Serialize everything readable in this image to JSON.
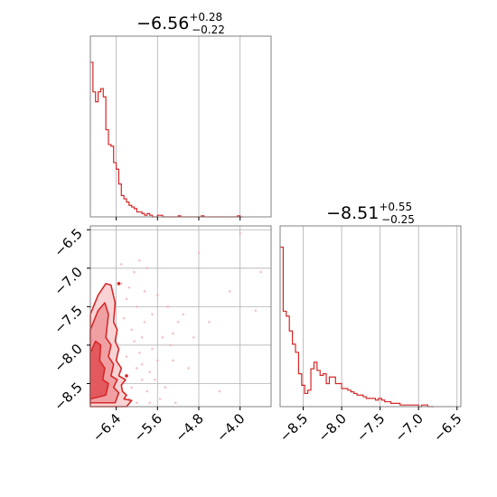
{
  "theme": {
    "series_color": "#d62728",
    "grid_color": "#b0b0b0",
    "frame_color": "#808080",
    "scatter_color": "#f4b3b4",
    "fill_light": "#f9d3d4",
    "fill_mid": "#f0a0a3",
    "fill_dark": "#e35a5e"
  },
  "chart_data": [
    {
      "type": "histogram",
      "parameter": "x",
      "title": {
        "median": "−6.56",
        "plus": "+0.28",
        "minus": "−0.22"
      },
      "xlim": [
        -6.9,
        -3.4
      ],
      "grid_x": [
        -6.4,
        -5.6,
        -4.8,
        -4.0
      ],
      "bins": [
        [
          -6.9,
          0.94
        ],
        [
          -6.85,
          0.76
        ],
        [
          -6.8,
          0.7
        ],
        [
          -6.75,
          0.76
        ],
        [
          -6.7,
          0.78
        ],
        [
          -6.65,
          0.73
        ],
        [
          -6.6,
          0.53
        ],
        [
          -6.55,
          0.44
        ],
        [
          -6.5,
          0.43
        ],
        [
          -6.45,
          0.33
        ],
        [
          -6.4,
          0.29
        ],
        [
          -6.35,
          0.2
        ],
        [
          -6.3,
          0.13
        ],
        [
          -6.25,
          0.11
        ],
        [
          -6.2,
          0.09
        ],
        [
          -6.15,
          0.07
        ],
        [
          -6.1,
          0.06
        ],
        [
          -6.05,
          0.05
        ],
        [
          -6.0,
          0.03
        ],
        [
          -5.95,
          0.03
        ],
        [
          -5.9,
          0.02
        ],
        [
          -5.85,
          0.01
        ],
        [
          -5.8,
          0.02
        ],
        [
          -5.75,
          0.01
        ],
        [
          -5.7,
          0.0
        ],
        [
          -5.65,
          0.0
        ],
        [
          -5.6,
          0.01
        ],
        [
          -5.55,
          0.01
        ],
        [
          -5.5,
          0.0
        ],
        [
          -5.45,
          0.0
        ],
        [
          -5.2,
          0.006
        ],
        [
          -5.15,
          0.0
        ],
        [
          -4.75,
          0.006
        ],
        [
          -4.7,
          0.0
        ],
        [
          -4.05,
          0.006
        ],
        [
          -4.0,
          0.0
        ]
      ]
    },
    {
      "type": "scatter+contour",
      "x_parameter": "x",
      "y_parameter": "y",
      "xlim": [
        -6.9,
        -3.4
      ],
      "ylim": [
        -8.8,
        -6.45
      ],
      "x_ticks": [
        "−6.4",
        "−5.6",
        "−4.8",
        "−4.0"
      ],
      "x_tick_values": [
        -6.4,
        -5.6,
        -4.8,
        -4.0
      ],
      "y_ticks": [
        "−6.5",
        "−7.0",
        "−7.5",
        "−8.0",
        "−8.5"
      ],
      "y_tick_values": [
        -6.5,
        -7.0,
        -7.5,
        -8.0,
        -8.5
      ],
      "points": [
        [
          -6.2,
          -7.4
        ],
        [
          -6.1,
          -7.8
        ],
        [
          -5.9,
          -7.9
        ],
        [
          -6.0,
          -8.3
        ],
        [
          -5.8,
          -8.6
        ],
        [
          -6.3,
          -7.2
        ],
        [
          -5.7,
          -7.6
        ],
        [
          -5.95,
          -8.1
        ],
        [
          -6.15,
          -8.7
        ],
        [
          -5.6,
          -8.2
        ],
        [
          -5.85,
          -7.3
        ],
        [
          -6.05,
          -7.05
        ],
        [
          -5.5,
          -7.9
        ],
        [
          -5.3,
          -8.2
        ],
        [
          -6.25,
          -7.65
        ],
        [
          -5.9,
          -8.45
        ],
        [
          -6.1,
          -8.55
        ],
        [
          -5.75,
          -8.75
        ],
        [
          -5.4,
          -7.5
        ],
        [
          -5.2,
          -7.7
        ],
        [
          -6.3,
          -6.95
        ],
        [
          -6.0,
          -7.5
        ],
        [
          -5.65,
          -8.45
        ],
        [
          -5.55,
          -8.7
        ],
        [
          -5.25,
          -8.75
        ],
        [
          -5.1,
          -7.6
        ],
        [
          -4.9,
          -7.9
        ],
        [
          -4.6,
          -7.7
        ],
        [
          -4.2,
          -7.3
        ],
        [
          -3.6,
          -7.05
        ],
        [
          -3.7,
          -7.55
        ],
        [
          -4.4,
          -8.6
        ],
        [
          -4.8,
          -6.8
        ],
        [
          -4.0,
          -6.55
        ],
        [
          -5.0,
          -8.3
        ],
        [
          -5.8,
          -7.0
        ],
        [
          -5.95,
          -6.9
        ],
        [
          -6.2,
          -8.15
        ],
        [
          -6.05,
          -7.95
        ],
        [
          -5.85,
          -7.7
        ],
        [
          -5.7,
          -8.05
        ],
        [
          -6.35,
          -8.4
        ],
        [
          -5.45,
          -8.55
        ],
        [
          -5.35,
          -8.0
        ],
        [
          -6.15,
          -7.25
        ],
        [
          -5.6,
          -7.35
        ],
        [
          -5.9,
          -8.25
        ],
        [
          -5.75,
          -8.35
        ],
        [
          -6.0,
          -8.75
        ],
        [
          -5.3,
          -7.85
        ]
      ],
      "contours": [
        {
          "level": "outer",
          "x": [
            -6.9,
            -6.75,
            -6.6,
            -6.5,
            -6.42,
            -6.45,
            -6.38,
            -6.42,
            -6.35,
            -6.4,
            -6.3,
            -6.35,
            -6.22,
            -6.3,
            -6.28,
            -6.2,
            -6.25,
            -6.1,
            -6.2,
            -6.9
          ],
          "y": [
            -7.6,
            -7.35,
            -7.2,
            -7.22,
            -7.45,
            -7.7,
            -7.8,
            -7.95,
            -8.05,
            -8.2,
            -8.3,
            -8.4,
            -8.45,
            -8.52,
            -8.6,
            -8.65,
            -8.7,
            -8.72,
            -8.8,
            -8.8
          ]
        },
        {
          "level": "mid",
          "x": [
            -6.9,
            -6.75,
            -6.62,
            -6.55,
            -6.6,
            -6.5,
            -6.55,
            -6.45,
            -6.5,
            -6.38,
            -6.45,
            -6.35,
            -6.42,
            -6.9
          ],
          "y": [
            -7.8,
            -7.55,
            -7.45,
            -7.6,
            -7.9,
            -8.0,
            -8.15,
            -8.25,
            -8.4,
            -8.45,
            -8.55,
            -8.62,
            -8.75,
            -8.75
          ]
        },
        {
          "level": "inner",
          "x": [
            -6.9,
            -6.8,
            -6.7,
            -6.72,
            -6.62,
            -6.66,
            -6.55,
            -6.6,
            -6.9
          ],
          "y": [
            -8.1,
            -7.95,
            -8.0,
            -8.2,
            -8.3,
            -8.45,
            -8.5,
            -8.65,
            -8.7
          ]
        }
      ]
    },
    {
      "type": "histogram",
      "parameter": "y",
      "title": {
        "median": "−8.51",
        "plus": "+0.55",
        "minus": "−0.25"
      },
      "xlim": [
        -8.8,
        -6.45
      ],
      "x_ticks": [
        "−8.5",
        "−8.0",
        "−7.5",
        "−7.0",
        "−6.5"
      ],
      "x_tick_values": [
        -8.5,
        -8.0,
        -7.5,
        -7.0,
        -6.5
      ],
      "bins": [
        [
          -8.8,
          0.97
        ],
        [
          -8.76,
          0.58
        ],
        [
          -8.72,
          0.55
        ],
        [
          -8.68,
          0.46
        ],
        [
          -8.64,
          0.38
        ],
        [
          -8.6,
          0.33
        ],
        [
          -8.56,
          0.2
        ],
        [
          -8.52,
          0.13
        ],
        [
          -8.48,
          0.08
        ],
        [
          -8.44,
          0.1
        ],
        [
          -8.4,
          0.23
        ],
        [
          -8.36,
          0.27
        ],
        [
          -8.32,
          0.22
        ],
        [
          -8.28,
          0.19
        ],
        [
          -8.24,
          0.2
        ],
        [
          -8.2,
          0.14
        ],
        [
          -8.16,
          0.18
        ],
        [
          -8.12,
          0.18
        ],
        [
          -8.08,
          0.14
        ],
        [
          -8.04,
          0.14
        ],
        [
          -8.0,
          0.11
        ],
        [
          -7.96,
          0.11
        ],
        [
          -7.92,
          0.1
        ],
        [
          -7.88,
          0.09
        ],
        [
          -7.84,
          0.08
        ],
        [
          -7.8,
          0.07
        ],
        [
          -7.76,
          0.07
        ],
        [
          -7.72,
          0.06
        ],
        [
          -7.68,
          0.05
        ],
        [
          -7.64,
          0.05
        ],
        [
          -7.6,
          0.05
        ],
        [
          -7.56,
          0.04
        ],
        [
          -7.52,
          0.05
        ],
        [
          -7.48,
          0.04
        ],
        [
          -7.44,
          0.03
        ],
        [
          -7.4,
          0.03
        ],
        [
          -7.36,
          0.02
        ],
        [
          -7.32,
          0.02
        ],
        [
          -7.28,
          0.02
        ],
        [
          -7.24,
          0.01
        ],
        [
          -7.2,
          0.01
        ],
        [
          -7.16,
          0.01
        ],
        [
          -7.12,
          0.01
        ],
        [
          -7.08,
          0.01
        ],
        [
          -7.04,
          0.01
        ],
        [
          -7.0,
          0.0
        ],
        [
          -6.96,
          0.01
        ],
        [
          -6.92,
          0.01
        ],
        [
          -6.88,
          0.0
        ],
        [
          -6.84,
          0.0
        ]
      ]
    }
  ]
}
